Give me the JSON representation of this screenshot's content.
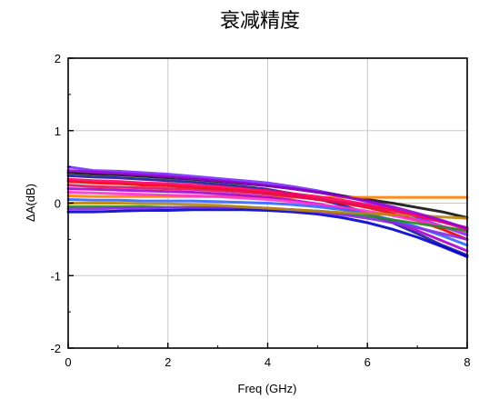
{
  "chart_data": {
    "type": "line",
    "title": "衰减精度",
    "xlabel": "Freq (GHz)",
    "ylabel": "ΔA(dB)",
    "xlim": [
      0,
      8
    ],
    "ylim": [
      -2,
      2
    ],
    "xticks": [
      "0",
      "2",
      "4",
      "6",
      "8"
    ],
    "yticks": [
      "2",
      "1",
      "0",
      "-1",
      "-2"
    ],
    "grid": true,
    "legend": "none",
    "x": [
      0,
      0.5,
      1,
      1.5,
      2,
      2.5,
      3,
      3.5,
      4,
      4.5,
      5,
      5.5,
      6,
      6.5,
      7,
      7.5,
      8
    ],
    "series": [
      {
        "color": "#7b2cff",
        "values": [
          0.5,
          0.45,
          0.44,
          0.42,
          0.4,
          0.37,
          0.34,
          0.31,
          0.28,
          0.23,
          0.17,
          0.1,
          0.02,
          -0.08,
          -0.2,
          -0.32,
          -0.44
        ]
      },
      {
        "color": "#111111",
        "values": [
          0.42,
          0.4,
          0.39,
          0.37,
          0.35,
          0.33,
          0.3,
          0.27,
          0.24,
          0.2,
          0.15,
          0.1,
          0.05,
          0.0,
          -0.06,
          -0.12,
          -0.2
        ]
      },
      {
        "color": "#1a1a99",
        "values": [
          0.38,
          0.36,
          0.35,
          0.33,
          0.31,
          0.29,
          0.26,
          0.23,
          0.19,
          0.13,
          0.06,
          -0.03,
          -0.14,
          -0.27,
          -0.42,
          -0.58,
          -0.72
        ]
      },
      {
        "color": "#ff7f00",
        "values": [
          0.1,
          0.09,
          0.09,
          0.09,
          0.09,
          0.09,
          0.09,
          0.09,
          0.08,
          0.08,
          0.08,
          0.08,
          0.08,
          0.08,
          0.08,
          0.08,
          0.08
        ]
      },
      {
        "color": "#ee0000",
        "values": [
          0.3,
          0.28,
          0.27,
          0.25,
          0.24,
          0.22,
          0.2,
          0.17,
          0.14,
          0.1,
          0.05,
          0.0,
          -0.06,
          -0.14,
          -0.24,
          -0.36,
          -0.5
        ]
      },
      {
        "color": "#e0105a",
        "values": [
          0.25,
          0.23,
          0.22,
          0.21,
          0.2,
          0.19,
          0.17,
          0.15,
          0.12,
          0.09,
          0.05,
          0.01,
          -0.04,
          -0.1,
          -0.18,
          -0.26,
          -0.34
        ]
      },
      {
        "color": "#aa00cc",
        "values": [
          0.2,
          0.19,
          0.18,
          0.17,
          0.16,
          0.15,
          0.13,
          0.11,
          0.08,
          0.04,
          -0.01,
          -0.07,
          -0.15,
          -0.25,
          -0.38,
          -0.52,
          -0.66
        ]
      },
      {
        "color": "#ff33cc",
        "values": [
          0.15,
          0.14,
          0.13,
          0.12,
          0.11,
          0.1,
          0.09,
          0.07,
          0.05,
          0.02,
          -0.02,
          -0.06,
          -0.11,
          -0.17,
          -0.24,
          -0.32,
          -0.4
        ]
      },
      {
        "color": "#3366ff",
        "values": [
          0.05,
          0.04,
          0.04,
          0.03,
          0.03,
          0.03,
          0.02,
          0.01,
          0.0,
          -0.02,
          -0.05,
          -0.09,
          -0.15,
          -0.23,
          -0.33,
          -0.45,
          -0.58
        ]
      },
      {
        "color": "#228b22",
        "values": [
          -0.05,
          -0.05,
          -0.05,
          -0.05,
          -0.06,
          -0.06,
          -0.06,
          -0.07,
          -0.08,
          -0.09,
          -0.11,
          -0.14,
          -0.18,
          -0.23,
          -0.28,
          -0.33,
          -0.38
        ]
      },
      {
        "color": "#0000cc",
        "values": [
          -0.12,
          -0.12,
          -0.11,
          -0.1,
          -0.1,
          -0.09,
          -0.09,
          -0.09,
          -0.1,
          -0.12,
          -0.15,
          -0.2,
          -0.27,
          -0.36,
          -0.47,
          -0.6,
          -0.74
        ]
      },
      {
        "color": "#8a2be2",
        "values": [
          -0.08,
          -0.08,
          -0.07,
          -0.07,
          -0.06,
          -0.06,
          -0.06,
          -0.06,
          -0.07,
          -0.09,
          -0.12,
          -0.16,
          -0.21,
          -0.27,
          -0.34,
          -0.42,
          -0.5
        ]
      },
      {
        "color": "#b8860b",
        "values": [
          0.0,
          0.0,
          0.0,
          -0.01,
          -0.01,
          -0.02,
          -0.03,
          -0.05,
          -0.07,
          -0.09,
          -0.11,
          -0.13,
          -0.14,
          -0.16,
          -0.17,
          -0.19,
          -0.21
        ]
      },
      {
        "color": "#ff0066",
        "values": [
          0.33,
          0.31,
          0.3,
          0.28,
          0.27,
          0.25,
          0.23,
          0.2,
          0.17,
          0.13,
          0.09,
          0.04,
          -0.02,
          -0.09,
          -0.17,
          -0.26,
          -0.36
        ]
      },
      {
        "color": "#9400d3",
        "values": [
          0.45,
          0.43,
          0.41,
          0.39,
          0.37,
          0.34,
          0.31,
          0.28,
          0.24,
          0.2,
          0.15,
          0.09,
          0.03,
          -0.05,
          -0.14,
          -0.24,
          -0.35
        ]
      }
    ]
  }
}
